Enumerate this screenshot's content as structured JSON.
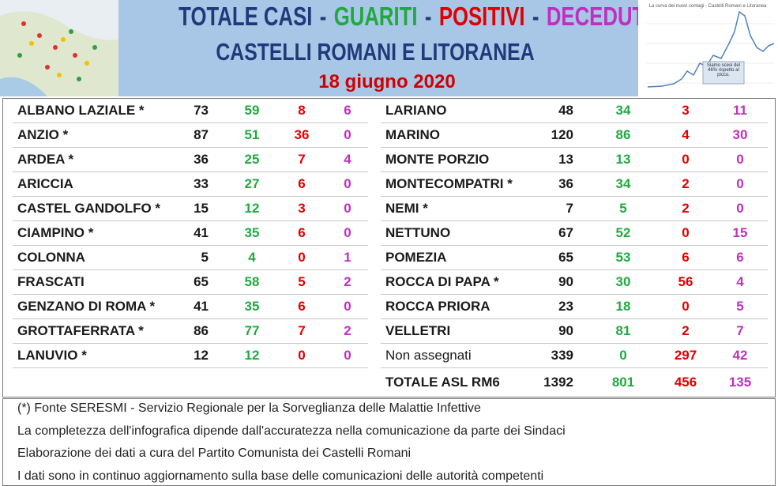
{
  "header": {
    "title_parts": [
      {
        "text": "TOTALE CASI",
        "color": "#1f3a7a"
      },
      {
        "text": "-",
        "color": "#1f3a7a"
      },
      {
        "text": "GUARITI",
        "color": "#1faa3f"
      },
      {
        "text": "-",
        "color": "#1f3a7a"
      },
      {
        "text": "POSITIVI",
        "color": "#e00000"
      },
      {
        "text": "-",
        "color": "#1f3a7a"
      },
      {
        "text": "DECEDUTI",
        "color": "#c02fc0"
      }
    ],
    "subtitle": "CASTELLI ROMANI E LITORANEA",
    "date": "18 giugno 2020",
    "thumbnail": {
      "title": "La curva dei nuovi contagi - Castelli Romani e Litoranea",
      "note": "Siamo scesi del 46% rispetto al picco."
    }
  },
  "table": {
    "left": [
      [
        "ALBANO LAZIALE *",
        "73",
        "59",
        "8",
        "6"
      ],
      [
        "ANZIO *",
        "87",
        "51",
        "36",
        "0"
      ],
      [
        "ARDEA *",
        "36",
        "25",
        "7",
        "4"
      ],
      [
        "ARICCIA",
        "33",
        "27",
        "6",
        "0"
      ],
      [
        "CASTEL GANDOLFO *",
        "15",
        "12",
        "3",
        "0"
      ],
      [
        "CIAMPINO *",
        "41",
        "35",
        "6",
        "0"
      ],
      [
        "COLONNA",
        "5",
        "4",
        "0",
        "1"
      ],
      [
        "FRASCATI",
        "65",
        "58",
        "5",
        "2"
      ],
      [
        "GENZANO DI ROMA *",
        "41",
        "35",
        "6",
        "0"
      ],
      [
        "GROTTAFERRATA *",
        "86",
        "77",
        "7",
        "2"
      ],
      [
        "LANUVIO *",
        "12",
        "12",
        "0",
        "0"
      ]
    ],
    "right": [
      [
        "LARIANO",
        "48",
        "34",
        "3",
        "11"
      ],
      [
        "MARINO",
        "120",
        "86",
        "4",
        "30"
      ],
      [
        "MONTE PORZIO",
        "13",
        "13",
        "0",
        "0"
      ],
      [
        "MONTECOMPATRI *",
        "36",
        "34",
        "2",
        "0"
      ],
      [
        "NEMI *",
        "7",
        "5",
        "2",
        "0"
      ],
      [
        "NETTUNO",
        "67",
        "52",
        "0",
        "15"
      ],
      [
        "POMEZIA",
        "65",
        "53",
        "6",
        "6"
      ],
      [
        "ROCCA DI PAPA *",
        "90",
        "30",
        "56",
        "4"
      ],
      [
        "ROCCA PRIORA",
        "23",
        "18",
        "0",
        "5"
      ],
      [
        "VELLETRI",
        "90",
        "81",
        "2",
        "7"
      ],
      [
        "Non assegnati",
        "339",
        "0",
        "297",
        "42"
      ]
    ],
    "total": [
      "TOTALE ASL RM6",
      "1392",
      "801",
      "456",
      "135"
    ]
  },
  "footer": [
    "(*) Fonte SERESMI - Servizio Regionale per la Sorveglianza delle Malattie Infettive",
    "La completezza dell'infografica dipende dall'accuratezza nella comunicazione da parte dei Sindaci",
    "Elaborazione dei dati a cura del Partito Comunista dei Castelli Romani",
    "I dati sono in continuo aggiornamento sulla base delle comunicazioni delle autorità competenti"
  ]
}
